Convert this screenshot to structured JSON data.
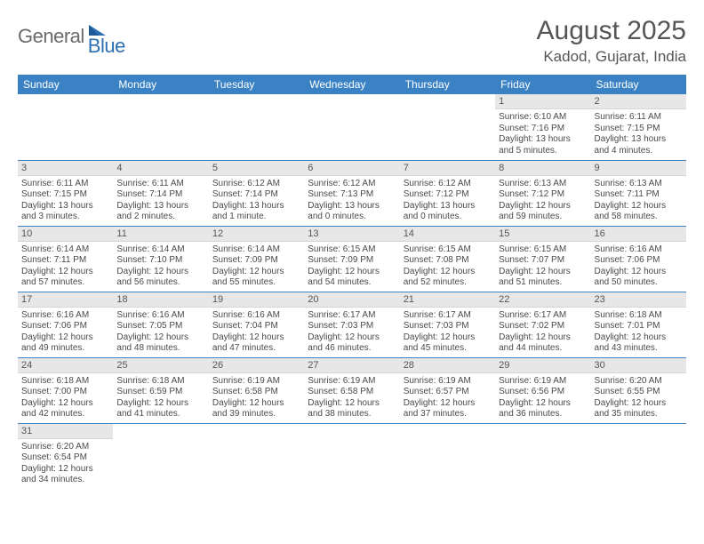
{
  "logo": {
    "text_general": "General",
    "text_blue": "Blue"
  },
  "title": "August 2025",
  "location": "Kadod, Gujarat, India",
  "colors": {
    "header_bg": "#3b82c4",
    "header_fg": "#ffffff",
    "daynum_bg": "#e7e7e7",
    "cell_border": "#3b82c4",
    "text": "#4a4a4a",
    "title_color": "#555555",
    "logo_gray": "#6a6a6a",
    "logo_blue": "#2c6fb3"
  },
  "weekdays": [
    "Sunday",
    "Monday",
    "Tuesday",
    "Wednesday",
    "Thursday",
    "Friday",
    "Saturday"
  ],
  "weeks": [
    [
      {
        "n": "",
        "sr": "",
        "ss": "",
        "dl": ""
      },
      {
        "n": "",
        "sr": "",
        "ss": "",
        "dl": ""
      },
      {
        "n": "",
        "sr": "",
        "ss": "",
        "dl": ""
      },
      {
        "n": "",
        "sr": "",
        "ss": "",
        "dl": ""
      },
      {
        "n": "",
        "sr": "",
        "ss": "",
        "dl": ""
      },
      {
        "n": "1",
        "sr": "Sunrise: 6:10 AM",
        "ss": "Sunset: 7:16 PM",
        "dl": "Daylight: 13 hours and 5 minutes."
      },
      {
        "n": "2",
        "sr": "Sunrise: 6:11 AM",
        "ss": "Sunset: 7:15 PM",
        "dl": "Daylight: 13 hours and 4 minutes."
      }
    ],
    [
      {
        "n": "3",
        "sr": "Sunrise: 6:11 AM",
        "ss": "Sunset: 7:15 PM",
        "dl": "Daylight: 13 hours and 3 minutes."
      },
      {
        "n": "4",
        "sr": "Sunrise: 6:11 AM",
        "ss": "Sunset: 7:14 PM",
        "dl": "Daylight: 13 hours and 2 minutes."
      },
      {
        "n": "5",
        "sr": "Sunrise: 6:12 AM",
        "ss": "Sunset: 7:14 PM",
        "dl": "Daylight: 13 hours and 1 minute."
      },
      {
        "n": "6",
        "sr": "Sunrise: 6:12 AM",
        "ss": "Sunset: 7:13 PM",
        "dl": "Daylight: 13 hours and 0 minutes."
      },
      {
        "n": "7",
        "sr": "Sunrise: 6:12 AM",
        "ss": "Sunset: 7:12 PM",
        "dl": "Daylight: 13 hours and 0 minutes."
      },
      {
        "n": "8",
        "sr": "Sunrise: 6:13 AM",
        "ss": "Sunset: 7:12 PM",
        "dl": "Daylight: 12 hours and 59 minutes."
      },
      {
        "n": "9",
        "sr": "Sunrise: 6:13 AM",
        "ss": "Sunset: 7:11 PM",
        "dl": "Daylight: 12 hours and 58 minutes."
      }
    ],
    [
      {
        "n": "10",
        "sr": "Sunrise: 6:14 AM",
        "ss": "Sunset: 7:11 PM",
        "dl": "Daylight: 12 hours and 57 minutes."
      },
      {
        "n": "11",
        "sr": "Sunrise: 6:14 AM",
        "ss": "Sunset: 7:10 PM",
        "dl": "Daylight: 12 hours and 56 minutes."
      },
      {
        "n": "12",
        "sr": "Sunrise: 6:14 AM",
        "ss": "Sunset: 7:09 PM",
        "dl": "Daylight: 12 hours and 55 minutes."
      },
      {
        "n": "13",
        "sr": "Sunrise: 6:15 AM",
        "ss": "Sunset: 7:09 PM",
        "dl": "Daylight: 12 hours and 54 minutes."
      },
      {
        "n": "14",
        "sr": "Sunrise: 6:15 AM",
        "ss": "Sunset: 7:08 PM",
        "dl": "Daylight: 12 hours and 52 minutes."
      },
      {
        "n": "15",
        "sr": "Sunrise: 6:15 AM",
        "ss": "Sunset: 7:07 PM",
        "dl": "Daylight: 12 hours and 51 minutes."
      },
      {
        "n": "16",
        "sr": "Sunrise: 6:16 AM",
        "ss": "Sunset: 7:06 PM",
        "dl": "Daylight: 12 hours and 50 minutes."
      }
    ],
    [
      {
        "n": "17",
        "sr": "Sunrise: 6:16 AM",
        "ss": "Sunset: 7:06 PM",
        "dl": "Daylight: 12 hours and 49 minutes."
      },
      {
        "n": "18",
        "sr": "Sunrise: 6:16 AM",
        "ss": "Sunset: 7:05 PM",
        "dl": "Daylight: 12 hours and 48 minutes."
      },
      {
        "n": "19",
        "sr": "Sunrise: 6:16 AM",
        "ss": "Sunset: 7:04 PM",
        "dl": "Daylight: 12 hours and 47 minutes."
      },
      {
        "n": "20",
        "sr": "Sunrise: 6:17 AM",
        "ss": "Sunset: 7:03 PM",
        "dl": "Daylight: 12 hours and 46 minutes."
      },
      {
        "n": "21",
        "sr": "Sunrise: 6:17 AM",
        "ss": "Sunset: 7:03 PM",
        "dl": "Daylight: 12 hours and 45 minutes."
      },
      {
        "n": "22",
        "sr": "Sunrise: 6:17 AM",
        "ss": "Sunset: 7:02 PM",
        "dl": "Daylight: 12 hours and 44 minutes."
      },
      {
        "n": "23",
        "sr": "Sunrise: 6:18 AM",
        "ss": "Sunset: 7:01 PM",
        "dl": "Daylight: 12 hours and 43 minutes."
      }
    ],
    [
      {
        "n": "24",
        "sr": "Sunrise: 6:18 AM",
        "ss": "Sunset: 7:00 PM",
        "dl": "Daylight: 12 hours and 42 minutes."
      },
      {
        "n": "25",
        "sr": "Sunrise: 6:18 AM",
        "ss": "Sunset: 6:59 PM",
        "dl": "Daylight: 12 hours and 41 minutes."
      },
      {
        "n": "26",
        "sr": "Sunrise: 6:19 AM",
        "ss": "Sunset: 6:58 PM",
        "dl": "Daylight: 12 hours and 39 minutes."
      },
      {
        "n": "27",
        "sr": "Sunrise: 6:19 AM",
        "ss": "Sunset: 6:58 PM",
        "dl": "Daylight: 12 hours and 38 minutes."
      },
      {
        "n": "28",
        "sr": "Sunrise: 6:19 AM",
        "ss": "Sunset: 6:57 PM",
        "dl": "Daylight: 12 hours and 37 minutes."
      },
      {
        "n": "29",
        "sr": "Sunrise: 6:19 AM",
        "ss": "Sunset: 6:56 PM",
        "dl": "Daylight: 12 hours and 36 minutes."
      },
      {
        "n": "30",
        "sr": "Sunrise: 6:20 AM",
        "ss": "Sunset: 6:55 PM",
        "dl": "Daylight: 12 hours and 35 minutes."
      }
    ],
    [
      {
        "n": "31",
        "sr": "Sunrise: 6:20 AM",
        "ss": "Sunset: 6:54 PM",
        "dl": "Daylight: 12 hours and 34 minutes."
      },
      {
        "n": "",
        "sr": "",
        "ss": "",
        "dl": ""
      },
      {
        "n": "",
        "sr": "",
        "ss": "",
        "dl": ""
      },
      {
        "n": "",
        "sr": "",
        "ss": "",
        "dl": ""
      },
      {
        "n": "",
        "sr": "",
        "ss": "",
        "dl": ""
      },
      {
        "n": "",
        "sr": "",
        "ss": "",
        "dl": ""
      },
      {
        "n": "",
        "sr": "",
        "ss": "",
        "dl": ""
      }
    ]
  ]
}
